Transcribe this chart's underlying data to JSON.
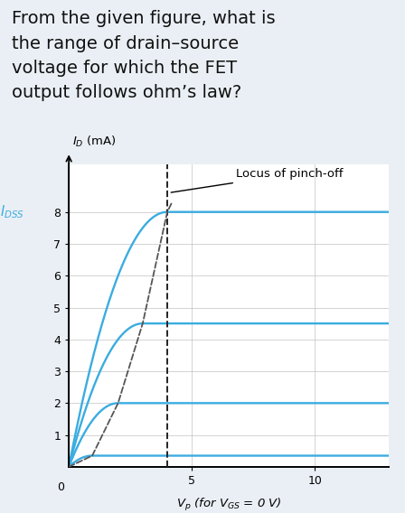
{
  "question_text": "From the given figure, what is\nthe range of drain–source\nvoltage for which the FET\noutput follows ohm’s law?",
  "question_bg": "#eaeff5",
  "plot_bg": "#ffffff",
  "plot_border_color": "#cccccc",
  "ylabel": "$I_D$ (mA)",
  "xlabel": "$V_p$ (for $V_{GS}$ = 0 V)",
  "idss_label": "$I_{DSS}$",
  "locus_label": "Locus of pinch-off",
  "xlim": [
    0,
    13
  ],
  "ylim": [
    0,
    9.5
  ],
  "yticks": [
    1,
    2,
    3,
    4,
    5,
    6,
    7,
    8
  ],
  "xticks": [
    5,
    10
  ],
  "curve_color": "#3aace0",
  "locus_dash_color": "#555555",
  "vline_color": "#222222",
  "pinchoff_x": 4.0,
  "curves": [
    {
      "idss": 8.0,
      "vp": 4.0
    },
    {
      "idss": 4.5,
      "vp": 3.0
    },
    {
      "idss": 2.0,
      "vp": 2.0
    },
    {
      "idss": 0.35,
      "vp": 0.95
    }
  ],
  "text_fontsize": 14.0,
  "axis_label_fontsize": 9.5,
  "tick_fontsize": 9.0,
  "idss_fontsize": 10.5,
  "locus_fontsize": 9.5
}
